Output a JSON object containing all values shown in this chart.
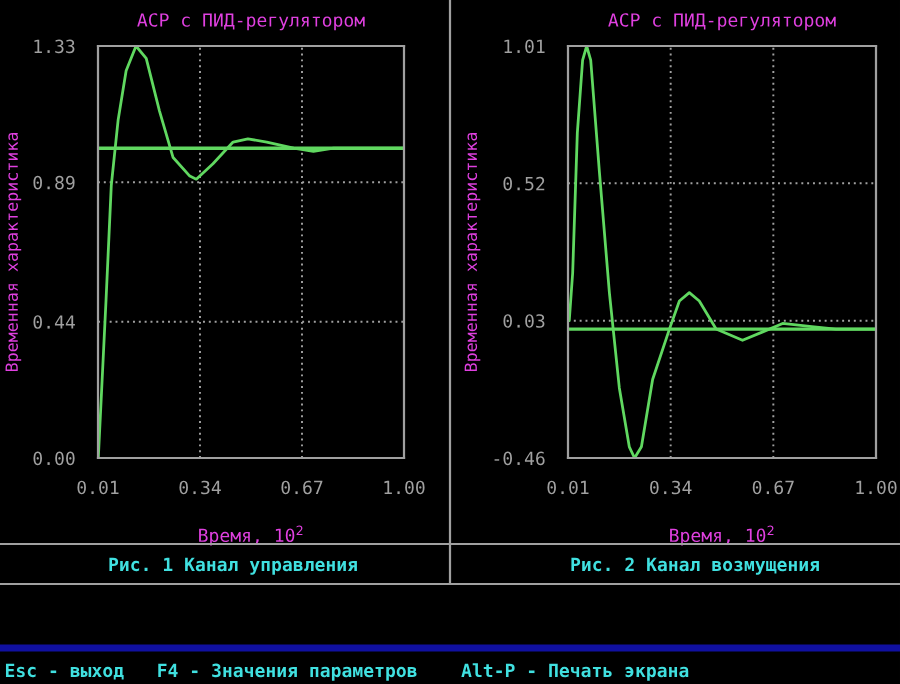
{
  "chart_data": [
    {
      "type": "line",
      "title": "АСР с ПИД-регулятором",
      "xlabel": "Время, 10$^{2}$",
      "ylabel": "Временная характеристика",
      "x": [
        0.011,
        0.036,
        0.053,
        0.075,
        0.101,
        0.133,
        0.166,
        0.209,
        0.253,
        0.307,
        0.328,
        0.382,
        0.447,
        0.495,
        0.556,
        0.643,
        0.707,
        0.772,
        1.0
      ],
      "series": [
        {
          "color": "#60d860",
          "values": [
            0,
            0.51,
            0.88,
            1.09,
            1.25,
            1.33,
            1.29,
            1.12,
            0.97,
            0.91,
            0.9,
            0.95,
            1.02,
            1.03,
            1.02,
            1.0,
            0.99,
            1.0,
            1.0
          ]
        }
      ],
      "xlim": [
        0.01,
        1.0
      ],
      "xticks": [
        0.01,
        0.34,
        0.67,
        {
          "value": 1.0,
          "label": "1.00"
        }
      ],
      "ylim": [
        0,
        1.33
      ],
      "yticks": [
        {
          "value": 0,
          "label": "0.00"
        },
        0.44,
        0.89,
        1.33
      ],
      "grid": true,
      "ref_lines": [
        {
          "axis": "y",
          "value": 1.0,
          "color": "#60d860"
        }
      ],
      "annotations": [
        "Рис. 1 Канал управления",
        "Esc - выход   F4 - Значения параметров    Alt-P - Печать экрана"
      ]
    },
    {
      "type": "line",
      "title": "АСР с ПИД-регулятором",
      "xlabel": "Время, 10$^{2}$",
      "ylabel": "Временная характеристика",
      "x": [
        0.014,
        0.025,
        0.04,
        0.057,
        0.07,
        0.083,
        0.111,
        0.143,
        0.175,
        0.207,
        0.224,
        0.246,
        0.282,
        0.336,
        0.368,
        0.4,
        0.432,
        0.486,
        0.571,
        0.636,
        0.7,
        0.786,
        0.871,
        1.0
      ],
      "series": [
        {
          "color": "#60d860",
          "values": [
            0.03,
            0.2,
            0.7,
            0.96,
            1.01,
            0.96,
            0.56,
            0.13,
            -0.21,
            -0.42,
            -0.46,
            -0.42,
            -0.18,
            0.0,
            0.1,
            0.13,
            0.1,
            0.0,
            -0.04,
            -0.01,
            0.02,
            0.01,
            0.0,
            0.0
          ]
        }
      ],
      "xlim": [
        0.01,
        1.0
      ],
      "xticks": [
        0.01,
        0.34,
        0.67,
        {
          "value": 1.0,
          "label": "1.00"
        }
      ],
      "ylim": [
        -0.46,
        1.01
      ],
      "yticks": [
        -0.46,
        0.03,
        0.52,
        1.01
      ],
      "grid": true,
      "ref_lines": [
        {
          "axis": "y",
          "value": 0.0,
          "color": "#60d860"
        }
      ],
      "annotations": [
        "Рис. 2 Канал возмущения"
      ]
    }
  ]
}
